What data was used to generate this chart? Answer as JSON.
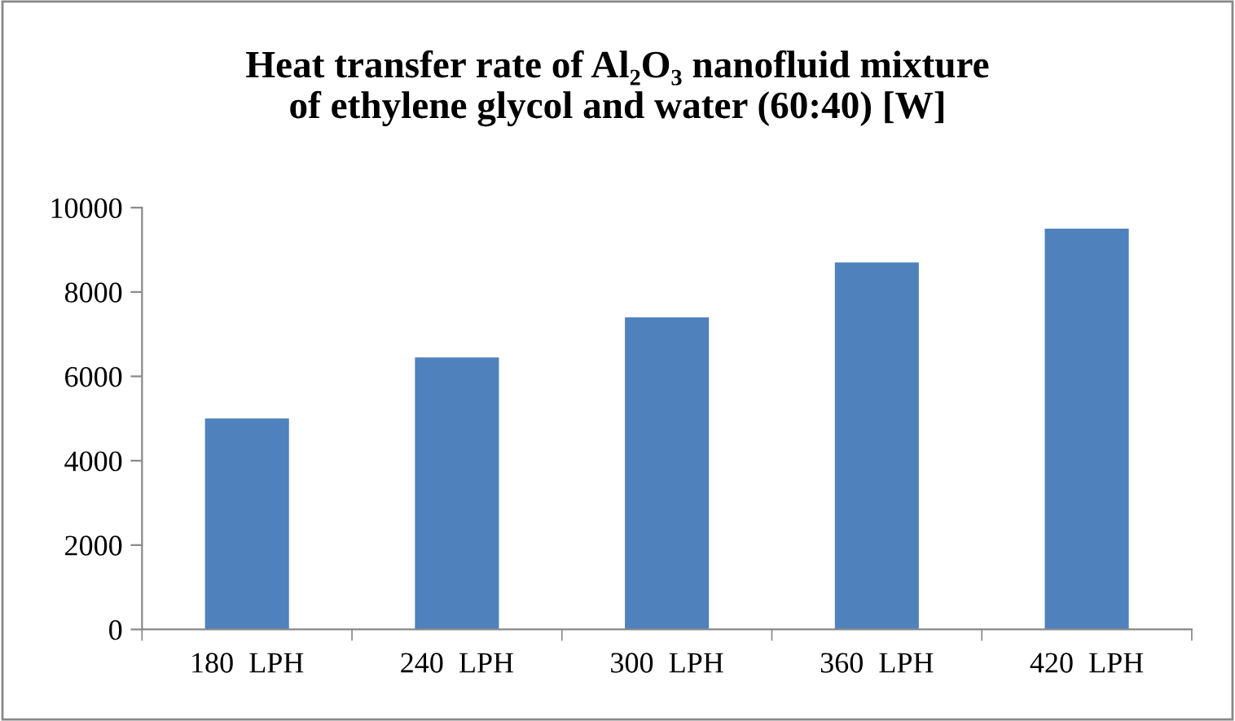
{
  "chart_data": {
    "type": "bar",
    "title": "Heat transfer rate of Al₂O₃ nanofluid mixture\nof ethylene glycol and water (60:40) [W]",
    "categories": [
      "180  LPH",
      "240  LPH",
      "300  LPH",
      "360  LPH",
      "420  LPH"
    ],
    "values": [
      5000,
      6450,
      7400,
      8700,
      9500
    ],
    "color": "#4f81bd",
    "ylim": [
      0,
      10000
    ],
    "yticks": [
      0,
      2000,
      4000,
      6000,
      8000,
      10000
    ],
    "grid": false,
    "legend": false
  }
}
